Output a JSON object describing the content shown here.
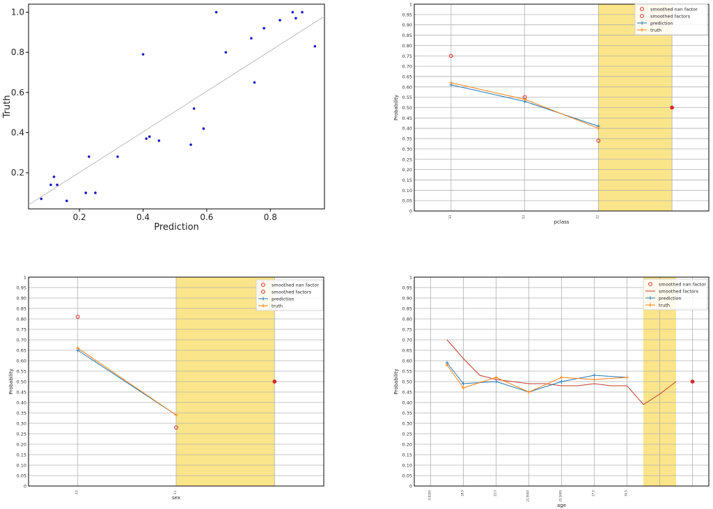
{
  "chart_data": [
    {
      "type": "scatter",
      "xlabel": "Prediction",
      "ylabel": "Truth",
      "xlim": [
        0.04,
        0.97
      ],
      "ylim": [
        0.02,
        1.04
      ],
      "xticks": [
        "0.2",
        "0.4",
        "0.6",
        "0.8"
      ],
      "xtick_values": [
        0.2,
        0.4,
        0.6,
        0.8
      ],
      "yticks": [
        "0.2",
        "0.4",
        "0.6",
        "0.8",
        "1.0"
      ],
      "ytick_values": [
        0.2,
        0.4,
        0.6,
        0.8,
        1.0
      ],
      "grid": false,
      "reference_line": {
        "from": [
          0.04,
          0.04
        ],
        "to": [
          0.97,
          0.98
        ]
      },
      "points": {
        "x": [
          0.08,
          0.11,
          0.12,
          0.13,
          0.16,
          0.22,
          0.23,
          0.25,
          0.32,
          0.4,
          0.41,
          0.42,
          0.45,
          0.55,
          0.56,
          0.59,
          0.63,
          0.66,
          0.74,
          0.75,
          0.78,
          0.83,
          0.87,
          0.88,
          0.9,
          0.94
        ],
        "y": [
          0.07,
          0.14,
          0.18,
          0.14,
          0.06,
          0.1,
          0.28,
          0.1,
          0.28,
          0.79,
          0.37,
          0.38,
          0.36,
          0.34,
          0.52,
          0.42,
          1.0,
          0.8,
          0.87,
          0.65,
          0.92,
          0.96,
          1.0,
          0.97,
          1.0,
          0.83
        ]
      }
    },
    {
      "type": "line",
      "xlabel": "pclass",
      "ylabel": "Probability",
      "categories": [
        "33",
        "53",
        "22",
        ""
      ],
      "ylim": [
        0,
        1
      ],
      "grid": true,
      "legend": "top-right",
      "highlight_band": {
        "from_index": 2.5,
        "to_index": 3.5,
        "color": "#fbe58a"
      },
      "series": [
        {
          "name": "smoothed nan factor",
          "marker": "circle",
          "color": "#d62728",
          "values": [
            null,
            null,
            null,
            0.5
          ]
        },
        {
          "name": "smoothed factors",
          "marker": "circle-open",
          "color": "#d62728",
          "values": [
            0.75,
            0.55,
            0.34,
            null
          ]
        },
        {
          "name": "prediction",
          "marker": "plus",
          "color": "#1f77b4",
          "values": [
            0.61,
            0.53,
            0.41,
            null
          ]
        },
        {
          "name": "truth",
          "marker": "plus",
          "color": "#ff7f0e",
          "values": [
            0.62,
            0.54,
            0.4,
            null
          ]
        }
      ]
    },
    {
      "type": "line",
      "xlabel": "sex",
      "ylabel": "Probability",
      "categories": [
        "3.0",
        "3.1",
        ""
      ],
      "ylim": [
        0,
        1
      ],
      "grid": true,
      "legend": "top-right",
      "highlight_band": {
        "from_index": 1.5,
        "to_index": 2.5,
        "color": "#fbe58a"
      },
      "series": [
        {
          "name": "smoothed nan factor",
          "marker": "circle",
          "color": "#d62728",
          "values": [
            null,
            null,
            0.5
          ]
        },
        {
          "name": "smoothed factors",
          "marker": "circle-open",
          "color": "#d62728",
          "values": [
            0.81,
            0.28,
            null
          ]
        },
        {
          "name": "prediction",
          "marker": "plus",
          "color": "#1f77b4",
          "values": [
            0.65,
            0.34,
            null
          ]
        },
        {
          "name": "truth",
          "marker": "plus",
          "color": "#ff7f0e",
          "values": [
            0.66,
            0.34,
            null
          ]
        }
      ]
    },
    {
      "type": "line",
      "xlabel": "age",
      "ylabel": "Probability",
      "categories": [
        "0.9200",
        "18.5",
        "22.0",
        "21.5000",
        "23.5000",
        "27.5",
        "30.5",
        "",
        ""
      ],
      "ylim": [
        0,
        1
      ],
      "grid": true,
      "legend": "top-right",
      "highlight_band": {
        "from_index": 7.0,
        "to_index": 8.0,
        "color": "#fbe58a"
      },
      "series": [
        {
          "name": "smoothed nan factor",
          "marker": "circle",
          "color": "#d62728",
          "values": [
            null,
            null,
            null,
            null,
            null,
            null,
            null,
            null,
            0.5
          ]
        },
        {
          "name": "smoothed factors",
          "marker": "line",
          "color": "#c0392b",
          "x": [
            0.5,
            1.0,
            1.5,
            2.0,
            2.5,
            3.0,
            3.5,
            4.0,
            4.5,
            5.0,
            5.5,
            6.0,
            6.5,
            7.0,
            7.5
          ],
          "values": [
            0.7,
            0.61,
            0.53,
            0.51,
            0.5,
            0.49,
            0.49,
            0.48,
            0.48,
            0.49,
            0.48,
            0.48,
            0.39,
            0.44,
            0.5
          ]
        },
        {
          "name": "prediction",
          "marker": "plus",
          "color": "#1f77b4",
          "x": [
            0.5,
            1.0,
            2.0,
            3.0,
            4.0,
            5.0,
            6.0
          ],
          "values": [
            0.59,
            0.49,
            0.5,
            0.45,
            0.5,
            0.53,
            0.52
          ]
        },
        {
          "name": "truth",
          "marker": "plus",
          "color": "#ff7f0e",
          "x": [
            0.5,
            1.0,
            2.0,
            3.0,
            4.0,
            5.0,
            6.0
          ],
          "values": [
            0.58,
            0.47,
            0.52,
            0.45,
            0.52,
            0.51,
            0.52
          ]
        }
      ]
    }
  ]
}
